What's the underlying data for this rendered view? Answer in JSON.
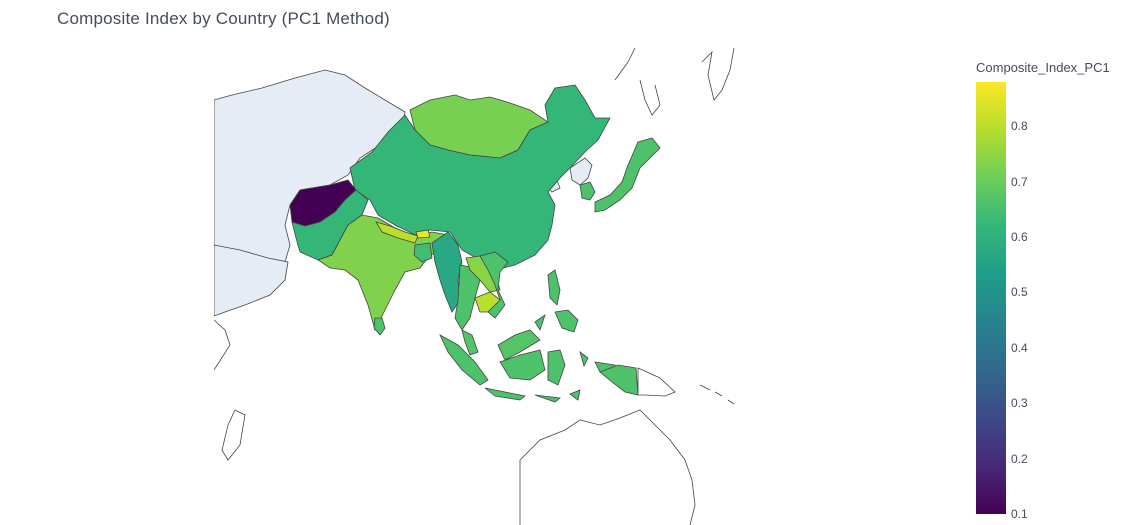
{
  "title": "Composite Index by Country (PC1 Method)",
  "colorbar": {
    "title": "Composite_Index_PC1",
    "range": [
      0.1,
      0.88
    ],
    "ticks": [
      "0.1",
      "0.2",
      "0.3",
      "0.4",
      "0.5",
      "0.6",
      "0.7",
      "0.8"
    ],
    "colorscale": "Viridis"
  },
  "no_data_color": "#e5ecf6",
  "countries": [
    {
      "name": "Afghanistan",
      "value": 0.1
    },
    {
      "name": "China",
      "value": 0.62
    },
    {
      "name": "Mongolia",
      "value": 0.72
    },
    {
      "name": "Pakistan",
      "value": 0.62
    },
    {
      "name": "India",
      "value": 0.73
    },
    {
      "name": "Nepal",
      "value": 0.8
    },
    {
      "name": "Bhutan",
      "value": 0.86
    },
    {
      "name": "Bangladesh",
      "value": 0.64
    },
    {
      "name": "Myanmar",
      "value": 0.57
    },
    {
      "name": "Thailand",
      "value": 0.66
    },
    {
      "name": "Laos",
      "value": 0.74
    },
    {
      "name": "Cambodia",
      "value": 0.8
    },
    {
      "name": "Vietnam",
      "value": 0.66
    },
    {
      "name": "Malaysia",
      "value": 0.67
    },
    {
      "name": "Indonesia",
      "value": 0.66
    },
    {
      "name": "Philippines",
      "value": 0.66
    },
    {
      "name": "Papua New Guinea",
      "value": 0.66
    },
    {
      "name": "Japan",
      "value": 0.66
    },
    {
      "name": "South Korea",
      "value": 0.66
    },
    {
      "name": "Sri Lanka",
      "value": 0.66
    }
  ]
}
